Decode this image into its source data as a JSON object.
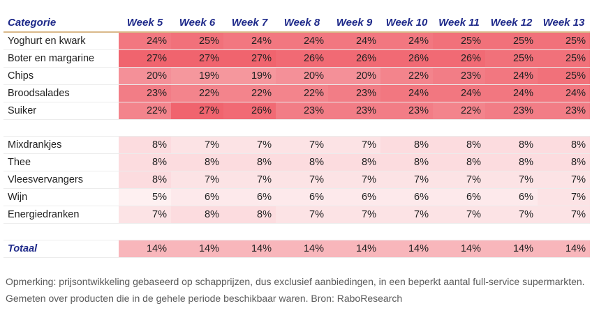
{
  "chart_data": {
    "type": "heatmap",
    "header_label": "Categorie",
    "columns": [
      "Week 5",
      "Week 6",
      "Week 7",
      "Week 8",
      "Week 9",
      "Week 10",
      "Week 11",
      "Week 12",
      "Week 13"
    ],
    "groups": [
      {
        "rows": [
          {
            "label": "Yoghurt en kwark",
            "values": [
              24,
              25,
              24,
              24,
              24,
              24,
              25,
              25,
              25
            ]
          },
          {
            "label": "Boter en margarine",
            "values": [
              27,
              27,
              27,
              26,
              26,
              26,
              26,
              25,
              25
            ]
          },
          {
            "label": "Chips",
            "values": [
              20,
              19,
              19,
              20,
              20,
              22,
              23,
              24,
              25
            ]
          },
          {
            "label": "Broodsalades",
            "values": [
              23,
              22,
              22,
              22,
              23,
              24,
              24,
              24,
              24
            ]
          },
          {
            "label": "Suiker",
            "values": [
              22,
              27,
              26,
              23,
              23,
              23,
              22,
              23,
              23
            ]
          }
        ]
      },
      {
        "rows": [
          {
            "label": "Mixdrankjes",
            "values": [
              8,
              7,
              7,
              7,
              7,
              8,
              8,
              8,
              8
            ]
          },
          {
            "label": "Thee",
            "values": [
              8,
              8,
              8,
              8,
              8,
              8,
              8,
              8,
              8
            ]
          },
          {
            "label": "Vleesvervangers",
            "values": [
              8,
              7,
              7,
              7,
              7,
              7,
              7,
              7,
              7
            ]
          },
          {
            "label": "Wijn",
            "values": [
              5,
              6,
              6,
              6,
              6,
              6,
              6,
              6,
              7
            ]
          },
          {
            "label": "Energiedranken",
            "values": [
              7,
              8,
              8,
              7,
              7,
              7,
              7,
              7,
              7
            ]
          }
        ]
      },
      {
        "total": true,
        "rows": [
          {
            "label": "Totaal",
            "values": [
              14,
              14,
              14,
              14,
              14,
              14,
              14,
              14,
              14
            ]
          }
        ]
      }
    ],
    "value_suffix": "%",
    "color_scale": {
      "low": "#ffffff",
      "high": "#f0646e"
    }
  },
  "note": "Opmerking: prijsontwikkeling gebaseerd op schapprijzen, dus exclusief aanbiedingen, in een beperkt aantal full-service supermarkten. Gemeten over producten die in de gehele periode beschikbaar waren. Bron: RaboResearch"
}
